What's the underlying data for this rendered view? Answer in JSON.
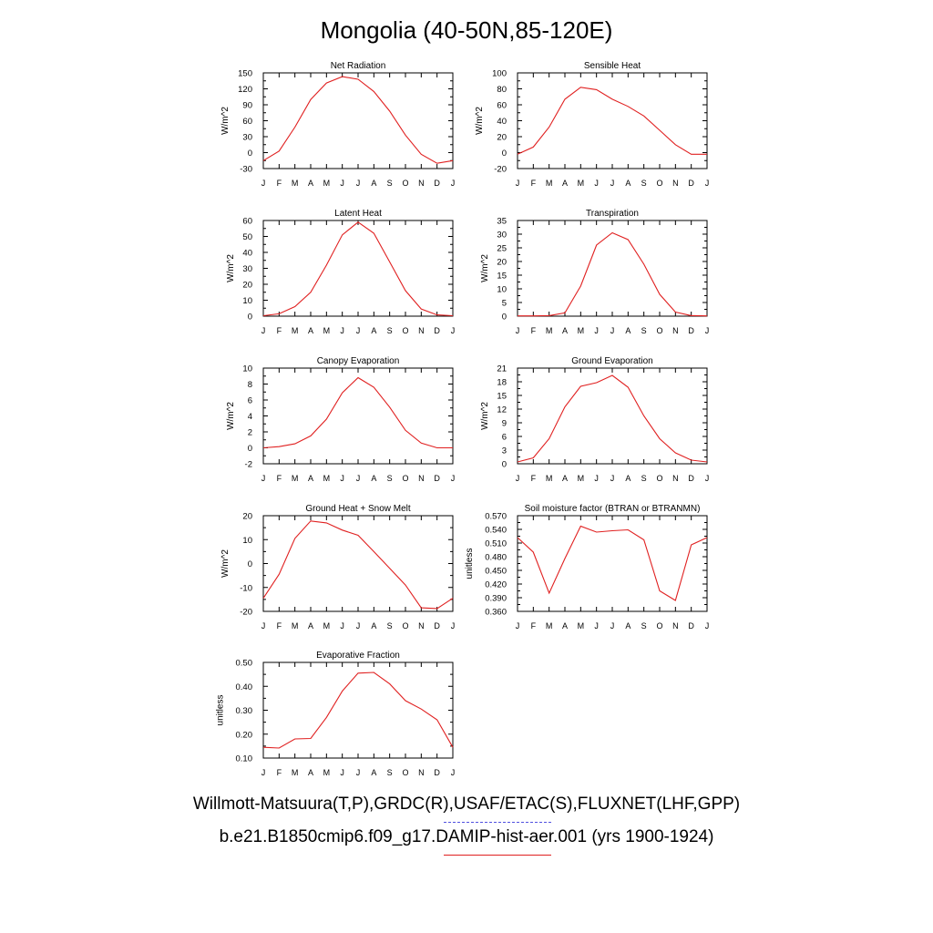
{
  "title": "Mongolia (40-50N,85-120E)",
  "legend": {
    "observations_label": "Willmott-Matsuura(T,P),GRDC(R),USAF/ETAC(S),FLUXNET(LHF,GPP)",
    "model_label": "b.e21.B1850cmip6.f09_g17.DAMIP-hist-aer.001 (yrs 1900-1924)",
    "observations_color": "#5050e0",
    "model_color": "#e02020"
  },
  "chart_data": [
    {
      "type": "line",
      "title": "Net Radiation",
      "ylabel": "W/m^2",
      "categories": [
        "J",
        "F",
        "M",
        "A",
        "M",
        "J",
        "J",
        "A",
        "S",
        "O",
        "N",
        "D",
        "J"
      ],
      "ylim": [
        -30,
        150
      ],
      "yticks": [
        "-30",
        "0",
        "30",
        "60",
        "90",
        "120",
        "150"
      ],
      "values": [
        -15,
        3,
        48,
        100,
        131,
        143,
        138,
        115,
        78,
        33,
        -3,
        -20,
        -15
      ]
    },
    {
      "type": "line",
      "title": "Sensible Heat",
      "ylabel": "W/m^2",
      "categories": [
        "J",
        "F",
        "M",
        "A",
        "M",
        "J",
        "J",
        "A",
        "S",
        "O",
        "N",
        "D",
        "J"
      ],
      "ylim": [
        -20,
        100
      ],
      "yticks": [
        "-20",
        "0",
        "20",
        "40",
        "60",
        "80",
        "100"
      ],
      "values": [
        -2,
        7,
        32,
        67,
        82,
        79,
        67,
        58,
        46,
        28,
        10,
        -2,
        -2
      ]
    },
    {
      "type": "line",
      "title": "Latent Heat",
      "ylabel": "W/m^2",
      "categories": [
        "J",
        "F",
        "M",
        "A",
        "M",
        "J",
        "J",
        "A",
        "S",
        "O",
        "N",
        "D",
        "J"
      ],
      "ylim": [
        0,
        60
      ],
      "yticks": [
        "0",
        "10",
        "20",
        "30",
        "40",
        "50",
        "60"
      ],
      "values": [
        0.3,
        1.5,
        6,
        15,
        32,
        51,
        59,
        52,
        34,
        16,
        4.5,
        0.8,
        0.3
      ]
    },
    {
      "type": "line",
      "title": "Transpiration",
      "ylabel": "W/m^2",
      "categories": [
        "J",
        "F",
        "M",
        "A",
        "M",
        "J",
        "J",
        "A",
        "S",
        "O",
        "N",
        "D",
        "J"
      ],
      "ylim": [
        0,
        35
      ],
      "yticks": [
        "0",
        "5",
        "10",
        "15",
        "20",
        "25",
        "30",
        "35"
      ],
      "values": [
        0.1,
        0.1,
        0.2,
        1.2,
        11,
        26,
        30.5,
        28,
        19,
        8,
        1.5,
        0.2,
        0.1
      ]
    },
    {
      "type": "line",
      "title": "Canopy Evaporation",
      "ylabel": "W/m^2",
      "categories": [
        "J",
        "F",
        "M",
        "A",
        "M",
        "J",
        "J",
        "A",
        "S",
        "O",
        "N",
        "D",
        "J"
      ],
      "ylim": [
        -2,
        10
      ],
      "yticks": [
        "-2",
        "0",
        "2",
        "4",
        "6",
        "8",
        "10"
      ],
      "values": [
        0,
        0.15,
        0.5,
        1.5,
        3.6,
        6.9,
        8.8,
        7.6,
        5.1,
        2.2,
        0.6,
        0,
        0
      ]
    },
    {
      "type": "line",
      "title": "Ground Evaporation",
      "ylabel": "W/m^2",
      "categories": [
        "J",
        "F",
        "M",
        "A",
        "M",
        "J",
        "J",
        "A",
        "S",
        "O",
        "N",
        "D",
        "J"
      ],
      "ylim": [
        0,
        21
      ],
      "yticks": [
        "0",
        "3",
        "6",
        "9",
        "12",
        "15",
        "18",
        "21"
      ],
      "values": [
        0.4,
        1.3,
        5.5,
        12.5,
        17,
        17.8,
        19.4,
        16.8,
        10.5,
        5.5,
        2.4,
        0.8,
        0.4
      ]
    },
    {
      "type": "line",
      "title": "Ground Heat + Snow Melt",
      "ylabel": "W/m^2",
      "categories": [
        "J",
        "F",
        "M",
        "A",
        "M",
        "J",
        "J",
        "A",
        "S",
        "O",
        "N",
        "D",
        "J"
      ],
      "ylim": [
        -20,
        20
      ],
      "yticks": [
        "-20",
        "-10",
        "0",
        "10",
        "20"
      ],
      "values": [
        -14.5,
        -4.5,
        10.5,
        17.8,
        17,
        14,
        11.8,
        5,
        -2,
        -9,
        -18.5,
        -18.8,
        -14.5
      ]
    },
    {
      "type": "line",
      "title": "Soil moisture factor (BTRAN or BTRANMN)",
      "ylabel": "unitless",
      "categories": [
        "J",
        "F",
        "M",
        "A",
        "M",
        "J",
        "J",
        "A",
        "S",
        "O",
        "N",
        "D",
        "J"
      ],
      "ylim": [
        0.36,
        0.57
      ],
      "yticks": [
        "0.360",
        "0.390",
        "0.420",
        "0.450",
        "0.480",
        "0.510",
        "0.540",
        "0.570"
      ],
      "values": [
        0.522,
        0.49,
        0.4,
        0.476,
        0.547,
        0.534,
        0.537,
        0.539,
        0.517,
        0.405,
        0.384,
        0.506,
        0.522
      ]
    },
    {
      "type": "line",
      "title": "Evaporative Fraction",
      "ylabel": "unitless",
      "categories": [
        "J",
        "F",
        "M",
        "A",
        "M",
        "J",
        "J",
        "A",
        "S",
        "O",
        "N",
        "D",
        "J"
      ],
      "ylim": [
        0.1,
        0.5
      ],
      "yticks": [
        "0.10",
        "0.20",
        "0.30",
        "0.40",
        "0.50"
      ],
      "values": [
        0.145,
        0.142,
        0.18,
        0.182,
        0.27,
        0.38,
        0.455,
        0.458,
        0.41,
        0.34,
        0.305,
        0.26,
        0.145
      ]
    }
  ]
}
